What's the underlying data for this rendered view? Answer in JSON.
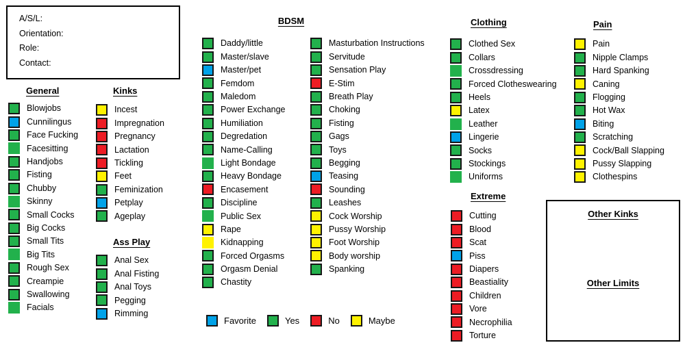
{
  "info_box": {
    "fields": [
      "A/S/L:",
      "Orientation:",
      "Role:",
      "Contact:"
    ]
  },
  "headers": {
    "general": "General",
    "kinks": "Kinks",
    "ass_play": "Ass Play",
    "bdsm": "BDSM",
    "clothing": "Clothing",
    "extreme": "Extreme",
    "pain": "Pain",
    "other_kinks": "Other Kinks",
    "other_limits": "Other Limits"
  },
  "colors": {
    "favorite": "#00A2E8",
    "yes": "#22B14C",
    "no": "#ED1C24",
    "maybe": "#FFF200",
    "checkbox_border": "#161616"
  },
  "legend": [
    {
      "label": "Favorite",
      "status": "favorite"
    },
    {
      "label": "Yes",
      "status": "yes"
    },
    {
      "label": "No",
      "status": "no"
    },
    {
      "label": "Maybe",
      "status": "maybe"
    }
  ],
  "lists": {
    "general": {
      "items": [
        {
          "label": "Blowjobs",
          "status": "yes"
        },
        {
          "label": "Cunnilingus",
          "status": "favorite"
        },
        {
          "label": "Face Fucking",
          "status": "yes"
        },
        {
          "label": "Facesitting",
          "status": "yes",
          "plain": true
        },
        {
          "label": "Handjobs",
          "status": "yes"
        },
        {
          "label": "Fisting",
          "status": "yes"
        },
        {
          "label": "Chubby",
          "status": "yes"
        },
        {
          "label": "Skinny",
          "status": "yes",
          "plain": true
        },
        {
          "label": "Small Cocks",
          "status": "yes"
        },
        {
          "label": "Big Cocks",
          "status": "yes"
        },
        {
          "label": "Small Tits",
          "status": "yes"
        },
        {
          "label": "Big Tits",
          "status": "yes",
          "plain": true
        },
        {
          "label": "Rough Sex",
          "status": "yes"
        },
        {
          "label": "Creampie",
          "status": "yes"
        },
        {
          "label": "Swallowing",
          "status": "yes"
        },
        {
          "label": "Facials",
          "status": "yes",
          "plain": true
        }
      ]
    },
    "kinks": {
      "items": [
        {
          "label": "Incest",
          "status": "maybe"
        },
        {
          "label": "Impregnation",
          "status": "no"
        },
        {
          "label": "Pregnancy",
          "status": "no"
        },
        {
          "label": "Lactation",
          "status": "no"
        },
        {
          "label": "Tickling",
          "status": "no"
        },
        {
          "label": "Feet",
          "status": "maybe"
        },
        {
          "label": "Feminization",
          "status": "yes"
        },
        {
          "label": "Petplay",
          "status": "favorite"
        },
        {
          "label": "Ageplay",
          "status": "yes"
        }
      ]
    },
    "assplay": {
      "items": [
        {
          "label": "Anal Sex",
          "status": "yes"
        },
        {
          "label": "Anal Fisting",
          "status": "yes"
        },
        {
          "label": "Anal Toys",
          "status": "yes"
        },
        {
          "label": "Pegging",
          "status": "yes"
        },
        {
          "label": "Rimming",
          "status": "favorite"
        }
      ]
    },
    "bdsm1": {
      "items": [
        {
          "label": "Daddy/little",
          "status": "yes"
        },
        {
          "label": "Master/slave",
          "status": "yes"
        },
        {
          "label": "Master/pet",
          "status": "favorite"
        },
        {
          "label": "Femdom",
          "status": "yes"
        },
        {
          "label": "Maledom",
          "status": "yes"
        },
        {
          "label": "Power Exchange",
          "status": "yes"
        },
        {
          "label": "Humiliation",
          "status": "yes"
        },
        {
          "label": "Degredation",
          "status": "yes"
        },
        {
          "label": "Name-Calling",
          "status": "yes"
        },
        {
          "label": "Light Bondage",
          "status": "yes",
          "plain": true
        },
        {
          "label": "Heavy Bondage",
          "status": "yes"
        },
        {
          "label": "Encasement",
          "status": "no"
        },
        {
          "label": "Discipline",
          "status": "yes"
        },
        {
          "label": "Public Sex",
          "status": "yes",
          "plain": true
        },
        {
          "label": "Rape",
          "status": "maybe"
        },
        {
          "label": "Kidnapping",
          "status": "maybe",
          "plain": true
        },
        {
          "label": "Forced Orgasms",
          "status": "yes"
        },
        {
          "label": "Orgasm Denial",
          "status": "yes"
        },
        {
          "label": "Chastity",
          "status": "yes"
        }
      ]
    },
    "bdsm2": {
      "items": [
        {
          "label": "Masturbation Instructions",
          "status": "yes"
        },
        {
          "label": "Servitude",
          "status": "yes"
        },
        {
          "label": "Sensation Play",
          "status": "yes"
        },
        {
          "label": "E-Stim",
          "status": "no"
        },
        {
          "label": "Breath Play",
          "status": "yes"
        },
        {
          "label": "Choking",
          "status": "yes"
        },
        {
          "label": "Fisting",
          "status": "yes"
        },
        {
          "label": "Gags",
          "status": "yes"
        },
        {
          "label": "Toys",
          "status": "yes"
        },
        {
          "label": "Begging",
          "status": "yes"
        },
        {
          "label": "Teasing",
          "status": "favorite"
        },
        {
          "label": "Sounding",
          "status": "no"
        },
        {
          "label": "Leashes",
          "status": "yes"
        },
        {
          "label": "Cock Worship",
          "status": "maybe"
        },
        {
          "label": "Pussy Worship",
          "status": "maybe"
        },
        {
          "label": "Foot Worship",
          "status": "maybe"
        },
        {
          "label": "Body worship",
          "status": "maybe"
        },
        {
          "label": "Spanking",
          "status": "yes"
        }
      ]
    },
    "clothing": {
      "items": [
        {
          "label": "Clothed Sex",
          "status": "yes"
        },
        {
          "label": "Collars",
          "status": "yes"
        },
        {
          "label": "Crossdressing",
          "status": "yes",
          "plain": true
        },
        {
          "label": "Forced Clotheswearing",
          "status": "yes"
        },
        {
          "label": "Heels",
          "status": "yes"
        },
        {
          "label": "Latex",
          "status": "maybe"
        },
        {
          "label": "Leather",
          "status": "yes",
          "plain": true
        },
        {
          "label": "Lingerie",
          "status": "favorite"
        },
        {
          "label": "Socks",
          "status": "yes"
        },
        {
          "label": "Stockings",
          "status": "yes"
        },
        {
          "label": "Uniforms",
          "status": "yes",
          "plain": true
        }
      ]
    },
    "extreme": {
      "items": [
        {
          "label": "Cutting",
          "status": "no"
        },
        {
          "label": "Blood",
          "status": "no"
        },
        {
          "label": "Scat",
          "status": "no"
        },
        {
          "label": "Piss",
          "status": "favorite"
        },
        {
          "label": "Diapers",
          "status": "no"
        },
        {
          "label": "Beastiality",
          "status": "no"
        },
        {
          "label": "Children",
          "status": "no"
        },
        {
          "label": "Vore",
          "status": "no"
        },
        {
          "label": "Necrophilia",
          "status": "no"
        },
        {
          "label": "Torture",
          "status": "no"
        }
      ]
    },
    "pain": {
      "items": [
        {
          "label": "Pain",
          "status": "maybe"
        },
        {
          "label": "Nipple Clamps",
          "status": "yes"
        },
        {
          "label": "Hard Spanking",
          "status": "yes"
        },
        {
          "label": "Caning",
          "status": "maybe"
        },
        {
          "label": "Flogging",
          "status": "yes"
        },
        {
          "label": "Hot Wax",
          "status": "yes"
        },
        {
          "label": "Biting",
          "status": "favorite"
        },
        {
          "label": "Scratching",
          "status": "yes"
        },
        {
          "label": "Cock/Ball Slapping",
          "status": "maybe"
        },
        {
          "label": "Pussy Slapping",
          "status": "maybe"
        },
        {
          "label": "Clothespins",
          "status": "maybe"
        }
      ]
    }
  }
}
